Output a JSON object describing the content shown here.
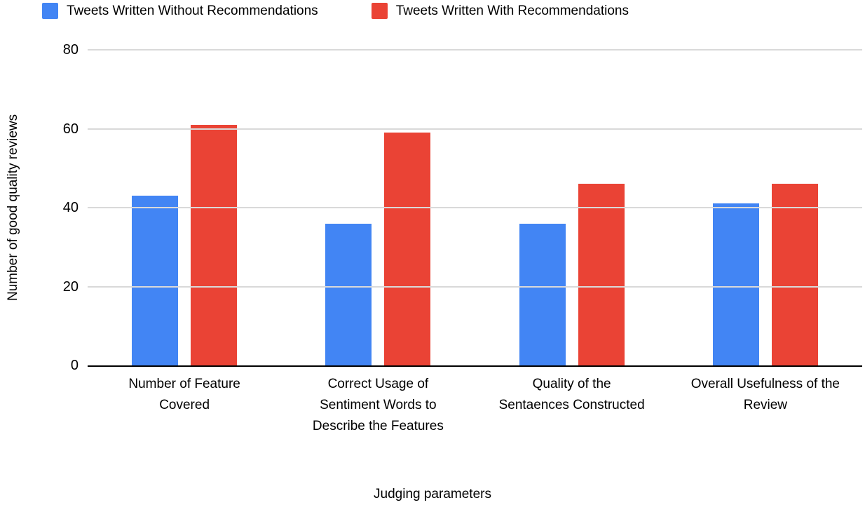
{
  "chart_data": {
    "type": "bar",
    "title": "",
    "categories": [
      "Number of Feature Covered",
      "Correct Usage of Sentiment Words to Describe the Features",
      "Quality of the Sentaences Constructed",
      "Overall Usefulness of the Review"
    ],
    "series": [
      {
        "name": "Tweets Written Without Recommendations",
        "color": "#4285F4",
        "values": [
          43,
          36,
          36,
          41
        ]
      },
      {
        "name": "Tweets Written With Recommendations",
        "color": "#EA4335",
        "values": [
          61,
          59,
          46,
          46
        ]
      }
    ],
    "xlabel": "Judging parameters",
    "ylabel": "Number of good quality reviews",
    "ylim": [
      0,
      80
    ],
    "yticks": [
      0,
      20,
      40,
      60,
      80
    ],
    "grid": true,
    "legend_position": "top",
    "colors": {
      "gridline": "#d9d9d9",
      "axis": "#000000",
      "text": "#000000",
      "background": "#ffffff"
    }
  }
}
